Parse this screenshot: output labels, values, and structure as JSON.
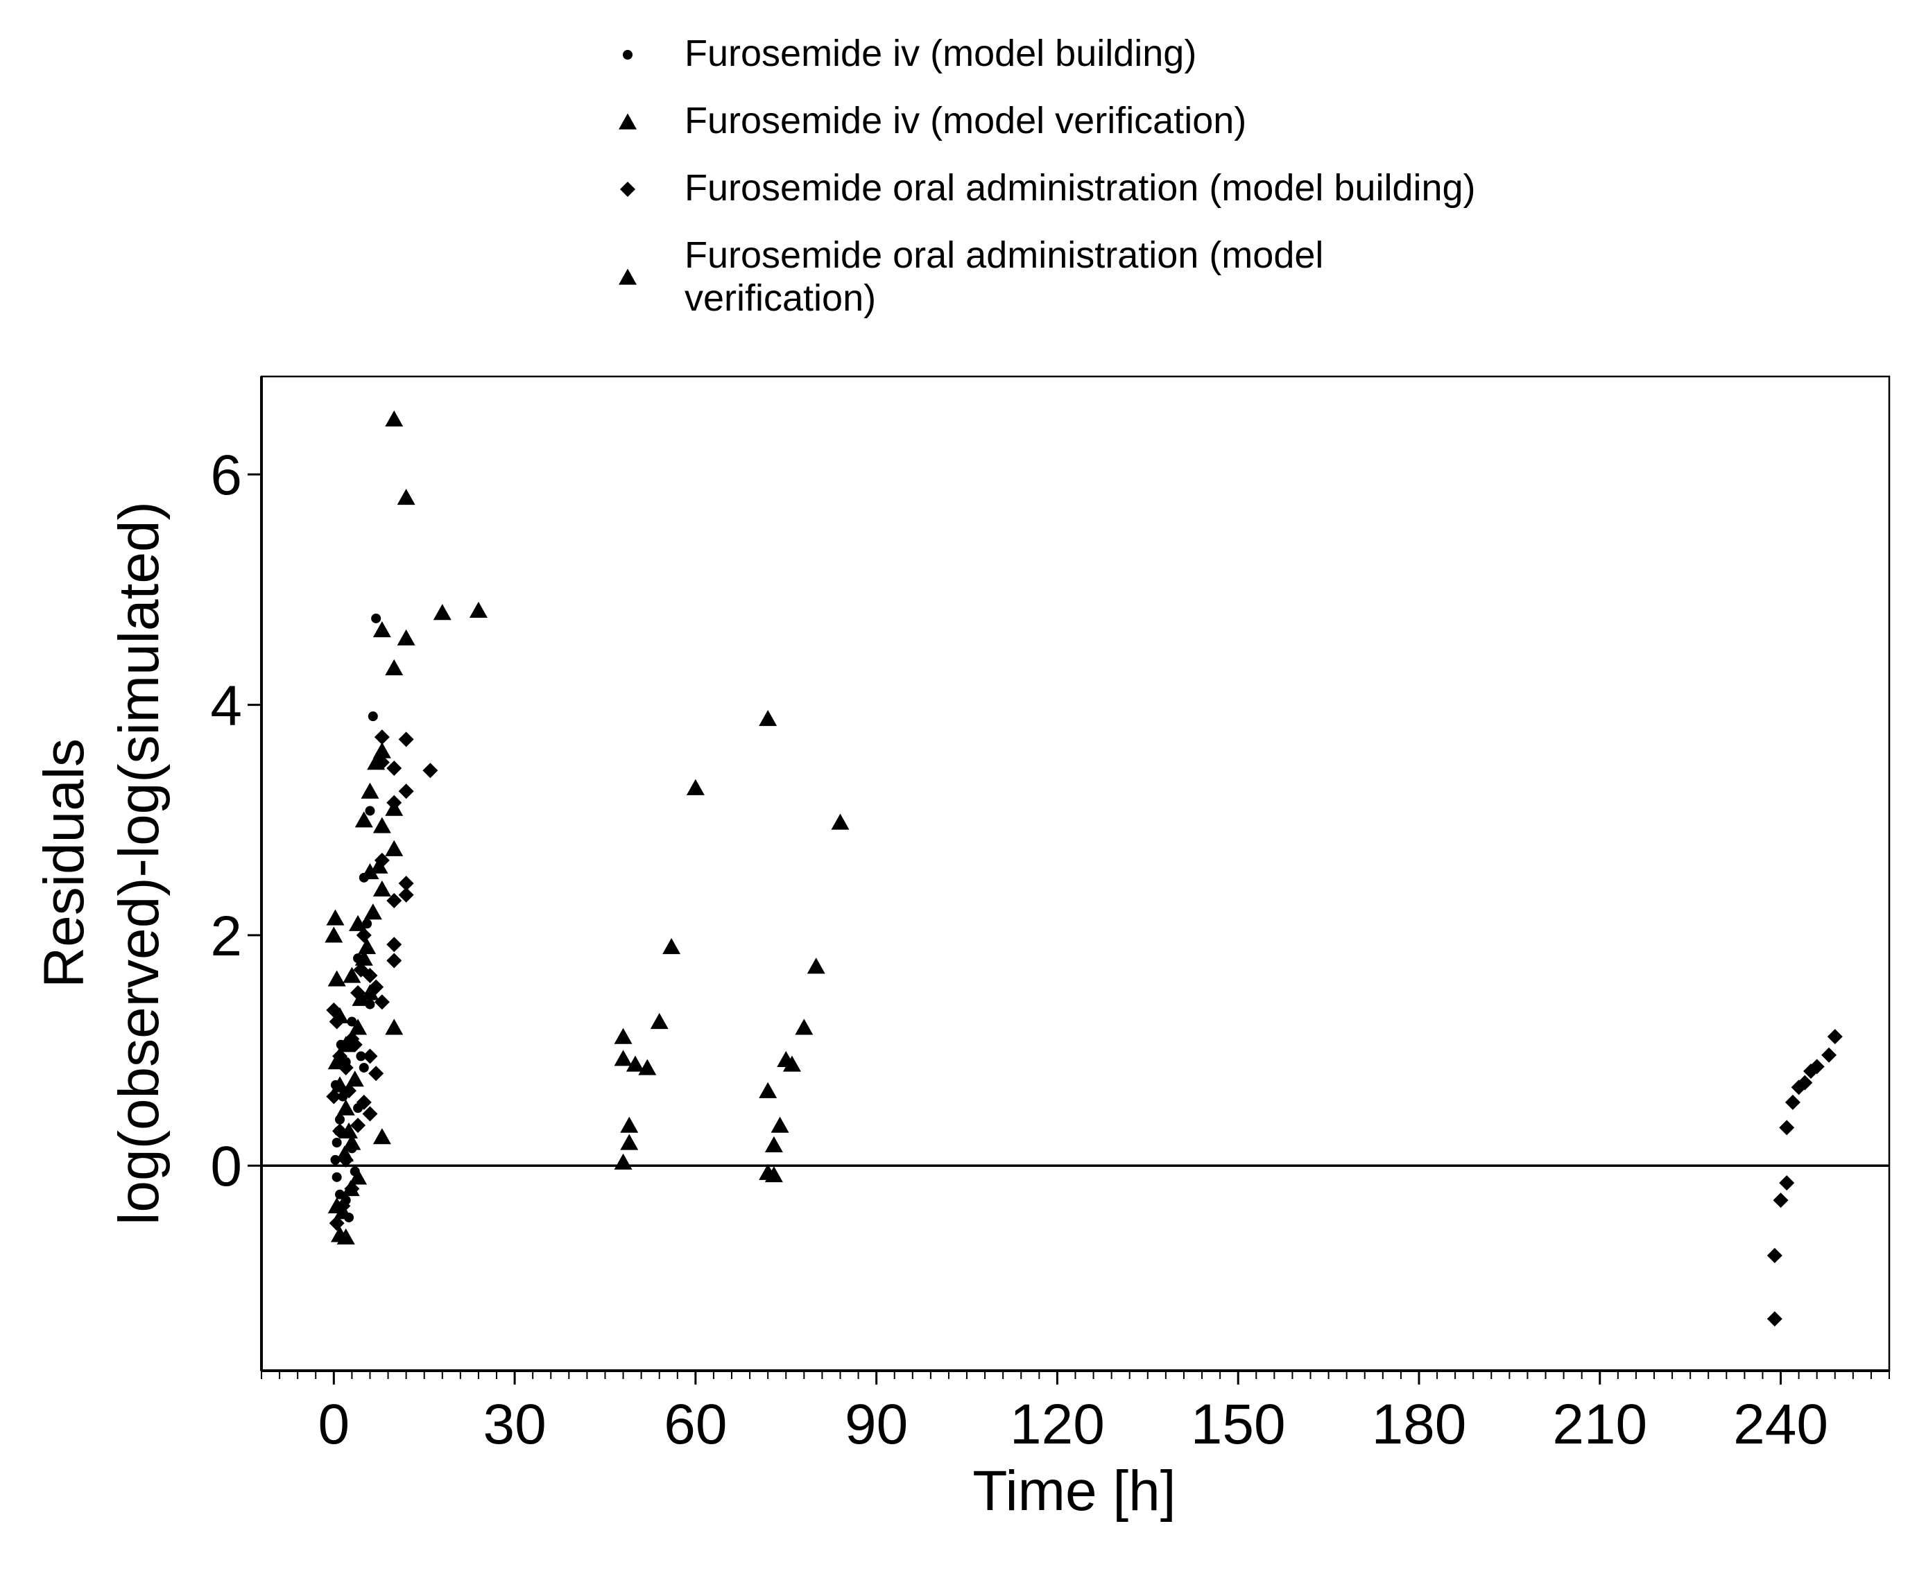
{
  "chart_data": {
    "type": "scatter",
    "xlabel": "Time [h]",
    "ylabel": [
      "Residuals",
      "log(observed)-log(simulated)"
    ],
    "xlim": [
      -12,
      258
    ],
    "ylim": [
      -1.78,
      6.85
    ],
    "xticks": [
      0,
      30,
      60,
      90,
      120,
      150,
      180,
      210,
      240
    ],
    "xticks_minor_step": 3,
    "yticks": [
      0,
      2,
      4,
      6
    ],
    "reference_line_y": 0,
    "legend_position": "top",
    "legend": [
      {
        "label": [
          "Furosemide iv (model building)"
        ],
        "marker": "circle"
      },
      {
        "label": [
          "Furosemide iv (model verification)"
        ],
        "marker": "triangle"
      },
      {
        "label": [
          "Furosemide oral administration (model building)"
        ],
        "marker": "diamond"
      },
      {
        "label": [
          "Furosemide oral administration (model",
          "verification)"
        ],
        "marker": "triangle"
      }
    ],
    "series": [
      {
        "name": "Furosemide iv (model building)",
        "marker": "circle",
        "points": [
          [
            7,
            4.75
          ],
          [
            6.5,
            3.9
          ],
          [
            6,
            3.08
          ],
          [
            5,
            2.5
          ],
          [
            4,
            1.8
          ],
          [
            3,
            1.25
          ],
          [
            2,
            0.9
          ],
          [
            1.5,
            0.6
          ],
          [
            1,
            0.4
          ],
          [
            0.5,
            0.2
          ],
          [
            0.25,
            0.05
          ],
          [
            0.5,
            -0.1
          ],
          [
            1,
            -0.25
          ],
          [
            2,
            -0.3
          ],
          [
            3,
            0.15
          ],
          [
            4,
            0.5
          ],
          [
            5,
            0.85
          ],
          [
            6,
            1.4
          ],
          [
            0.3,
            0.7
          ],
          [
            1.2,
            1.05
          ],
          [
            2.5,
            -0.45
          ],
          [
            3.5,
            -0.05
          ],
          [
            0.8,
            0.3
          ],
          [
            4.5,
            0.95
          ],
          [
            5.5,
            2.1
          ]
        ]
      },
      {
        "name": "Furosemide iv (model verification)",
        "marker": "triangle",
        "points": [
          [
            10,
            6.48
          ],
          [
            12,
            5.8
          ],
          [
            18,
            4.8
          ],
          [
            24,
            4.82
          ],
          [
            8,
            4.65
          ],
          [
            10,
            4.32
          ],
          [
            12,
            4.58
          ],
          [
            8,
            3.6
          ],
          [
            10,
            3.1
          ],
          [
            8,
            2.95
          ],
          [
            10,
            2.75
          ],
          [
            8,
            2.4
          ],
          [
            7,
            3.5
          ],
          [
            6,
            3.25
          ],
          [
            5,
            3.0
          ],
          [
            6,
            2.55
          ],
          [
            4,
            2.1
          ],
          [
            5,
            1.8
          ],
          [
            6,
            1.5
          ],
          [
            3,
            1.65
          ],
          [
            4,
            1.2
          ],
          [
            2,
            1.05
          ],
          [
            1,
            1.3
          ],
          [
            0.5,
            1.62
          ],
          [
            0,
            2.0
          ],
          [
            0.25,
            2.15
          ],
          [
            0.5,
            0.9
          ],
          [
            1,
            0.7
          ],
          [
            2,
            0.5
          ],
          [
            3,
            0.2
          ],
          [
            4,
            -0.1
          ],
          [
            1.5,
            -0.4
          ],
          [
            1,
            -0.6
          ],
          [
            2,
            -0.62
          ],
          [
            0.5,
            -0.35
          ],
          [
            2.5,
            0.3
          ],
          [
            3.5,
            0.75
          ],
          [
            4.5,
            1.45
          ],
          [
            5.5,
            1.9
          ],
          [
            6.5,
            2.2
          ],
          [
            7.5,
            2.6
          ],
          [
            8,
            0.25
          ],
          [
            10,
            1.2
          ],
          [
            1.8,
            0.1
          ],
          [
            2.8,
            -0.2
          ]
        ]
      },
      {
        "name": "Furosemide oral administration (model building)",
        "marker": "diamond",
        "points": [
          [
            8,
            3.72
          ],
          [
            12,
            3.7
          ],
          [
            16,
            3.43
          ],
          [
            10,
            3.45
          ],
          [
            8,
            3.5
          ],
          [
            12,
            3.25
          ],
          [
            10,
            3.15
          ],
          [
            8,
            2.65
          ],
          [
            12,
            2.45
          ],
          [
            12,
            2.35
          ],
          [
            10,
            2.3
          ],
          [
            10,
            1.92
          ],
          [
            10,
            1.78
          ],
          [
            8,
            1.42
          ],
          [
            6,
            1.65
          ],
          [
            5,
            2.0
          ],
          [
            4,
            1.5
          ],
          [
            3,
            1.1
          ],
          [
            2,
            0.85
          ],
          [
            1,
            0.95
          ],
          [
            0,
            1.35
          ],
          [
            0.5,
            1.25
          ],
          [
            0,
            0.6
          ],
          [
            1,
            0.3
          ],
          [
            2,
            0.05
          ],
          [
            3,
            -0.2
          ],
          [
            4,
            0.35
          ],
          [
            5,
            0.55
          ],
          [
            6,
            0.95
          ],
          [
            7,
            1.55
          ],
          [
            1.5,
            -0.35
          ],
          [
            0.5,
            -0.5
          ],
          [
            2.5,
            0.65
          ],
          [
            3.5,
            1.05
          ],
          [
            6,
            0.45
          ],
          [
            7,
            0.8
          ],
          [
            4.5,
            1.7
          ],
          [
            239,
            -1.33
          ],
          [
            239,
            -0.78
          ],
          [
            240,
            -0.3
          ],
          [
            241,
            -0.15
          ],
          [
            241,
            0.33
          ],
          [
            242,
            0.55
          ],
          [
            243,
            0.68
          ],
          [
            244,
            0.72
          ],
          [
            245,
            0.82
          ],
          [
            246,
            0.86
          ],
          [
            248,
            0.96
          ],
          [
            249,
            1.12
          ]
        ]
      },
      {
        "name": "Furosemide oral administration (model verification)",
        "marker": "triangle",
        "points": [
          [
            48,
            1.12
          ],
          [
            48,
            0.93
          ],
          [
            50,
            0.88
          ],
          [
            52,
            0.85
          ],
          [
            54,
            1.25
          ],
          [
            56,
            1.9
          ],
          [
            49,
            0.35
          ],
          [
            49,
            0.2
          ],
          [
            48,
            0.03
          ],
          [
            60,
            3.28
          ],
          [
            72,
            3.88
          ],
          [
            84,
            2.98
          ],
          [
            80,
            1.73
          ],
          [
            78,
            1.2
          ],
          [
            76,
            0.88
          ],
          [
            75,
            0.92
          ],
          [
            72,
            0.65
          ],
          [
            74,
            0.35
          ],
          [
            73,
            0.18
          ],
          [
            72,
            -0.06
          ],
          [
            73,
            -0.08
          ]
        ]
      }
    ]
  }
}
